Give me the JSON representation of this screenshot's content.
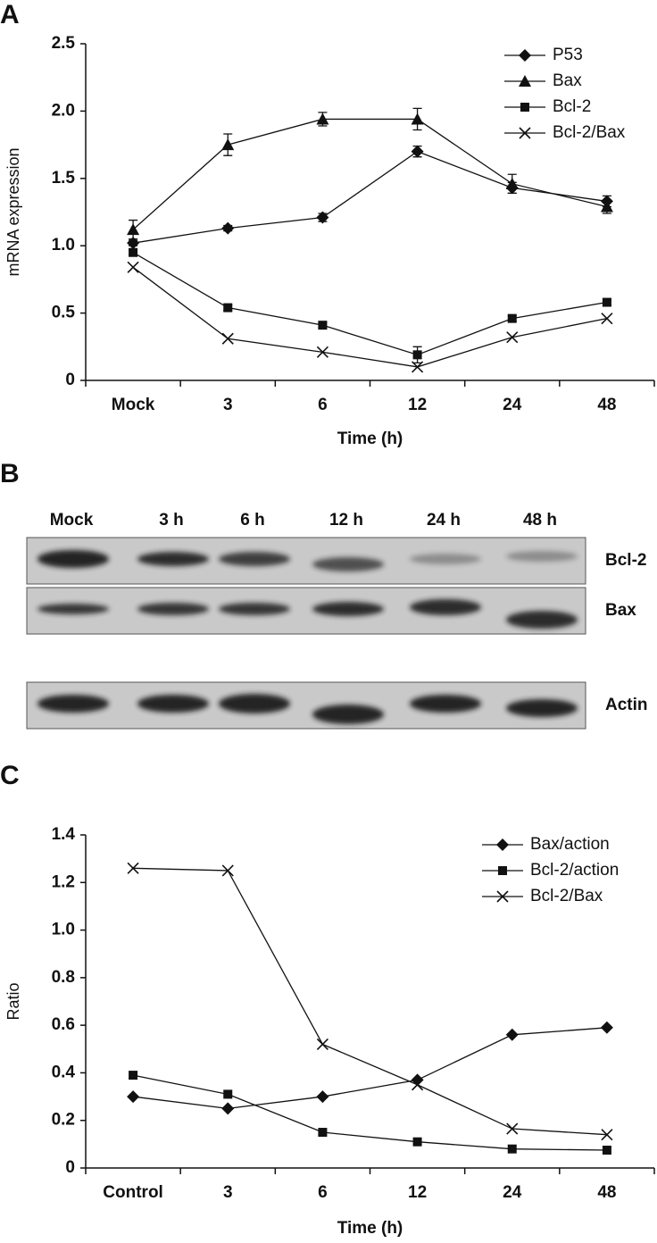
{
  "chart_data": [
    {
      "type": "line",
      "panel": "A",
      "y_label": "mRNA expression",
      "x_label": "Time (h)",
      "categories": [
        "Mock",
        "3",
        "6",
        "12",
        "24",
        "48"
      ],
      "ylim": [
        0,
        2.5
      ],
      "yticks": [
        0,
        0.5,
        {
          "value": 1,
          "label": "1.0"
        },
        1.5,
        {
          "value": 2,
          "label": "2.0"
        },
        2.5
      ],
      "legend": "top-right",
      "series": [
        {
          "name": "P53",
          "color": "#111111",
          "marker": "diamond",
          "values": [
            1.02,
            1.13,
            1.21,
            1.7,
            1.43,
            1.33
          ],
          "errors": [
            0.02,
            0.02,
            0.03,
            0.04,
            0.04,
            0.04
          ]
        },
        {
          "name": "Bax",
          "color": "#111111",
          "marker": "triangle",
          "values": [
            1.12,
            1.75,
            1.94,
            1.94,
            1.46,
            1.29
          ],
          "errors": [
            0.07,
            0.08,
            0.05,
            0.08,
            0.07,
            0.05
          ]
        },
        {
          "name": "Bcl-2",
          "color": "#111111",
          "marker": "square",
          "values": [
            0.95,
            0.54,
            0.41,
            0.19,
            0.46,
            0.58
          ],
          "errors": [
            0.02,
            0.02,
            0.02,
            0.06,
            0.02,
            0.02
          ]
        },
        {
          "name": "Bcl-2/Bax",
          "color": "#111111",
          "marker": "x",
          "values": [
            0.84,
            0.31,
            0.21,
            0.1,
            0.32,
            0.46
          ]
        }
      ]
    },
    {
      "type": "line",
      "panel": "C",
      "y_label": "Ratio",
      "x_label": "Time (h)",
      "categories": [
        "Control",
        "3",
        "6",
        "12",
        "24",
        "48"
      ],
      "ylim": [
        0,
        1.4
      ],
      "yticks": [
        0,
        0.2,
        0.4,
        0.6,
        0.8,
        {
          "value": 1,
          "label": "1.0"
        },
        1.2,
        1.4
      ],
      "legend": "top-right",
      "series": [
        {
          "name": "Bax/action",
          "color": "#111111",
          "marker": "diamond",
          "values": [
            0.3,
            0.25,
            0.3,
            0.37,
            0.56,
            0.59
          ]
        },
        {
          "name": "Bcl-2/action",
          "color": "#111111",
          "marker": "square",
          "values": [
            0.39,
            0.31,
            0.15,
            0.11,
            0.08,
            0.075
          ]
        },
        {
          "name": "Bcl-2/Bax",
          "color": "#111111",
          "marker": "x",
          "values": [
            1.26,
            1.25,
            0.52,
            0.35,
            0.165,
            0.14
          ]
        }
      ]
    }
  ],
  "blot": {
    "panel": "B",
    "lanes": [
      "Mock",
      "3 h",
      "6 h",
      "12 h",
      "24 h",
      "48 h"
    ],
    "rows": [
      "Bcl-2",
      "Bax",
      "Actin"
    ]
  }
}
